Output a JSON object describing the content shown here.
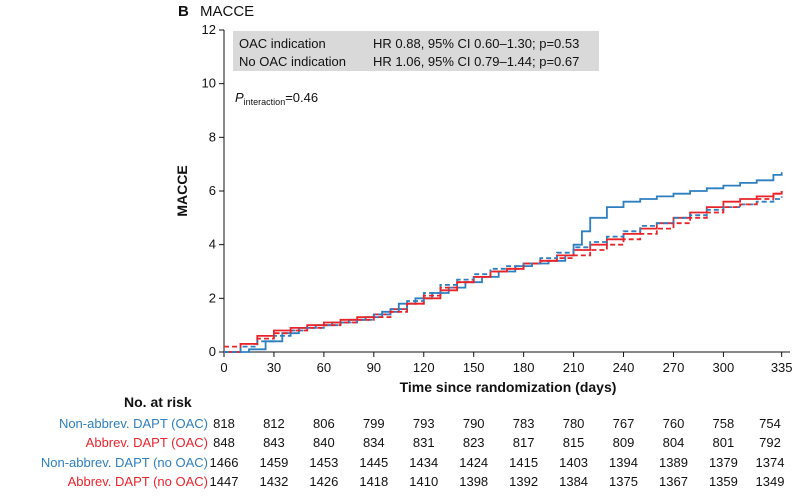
{
  "chart_data": {
    "type": "line",
    "step": true,
    "panel_letter": "B",
    "title": "MACCE",
    "xlabel": "Time since randomization (days)",
    "ylabel": "MACCE",
    "xlim": [
      0,
      340
    ],
    "ylim": [
      0,
      12
    ],
    "xticks": [
      0,
      30,
      60,
      90,
      120,
      150,
      180,
      210,
      240,
      270,
      300,
      335
    ],
    "yticks": [
      0,
      2,
      4,
      6,
      8,
      10,
      12
    ],
    "grid": false,
    "hr_box": {
      "rows": [
        {
          "label": "OAC indication",
          "text": "HR 0.88, 95% CI 0.60–1.30; p=0.53"
        },
        {
          "label": "No OAC indication",
          "text": "HR 1.06, 95% CI 0.79–1.44; p=0.67"
        }
      ]
    },
    "interaction": {
      "symbol": "P",
      "subscript": "interaction",
      "value": "=0.46"
    },
    "colors": {
      "blue": "#2e7fc0",
      "red": "#e8242b"
    },
    "series": [
      {
        "name": "Non-abbrev. DAPT (OAC)",
        "color": "#2e7fc0",
        "dash": false,
        "x": [
          0,
          15,
          25,
          35,
          45,
          55,
          65,
          75,
          85,
          95,
          105,
          115,
          125,
          135,
          145,
          155,
          165,
          175,
          185,
          195,
          205,
          210,
          215,
          220,
          230,
          240,
          250,
          260,
          270,
          280,
          290,
          300,
          310,
          320,
          330,
          335
        ],
        "y": [
          0,
          0.1,
          0.4,
          0.7,
          0.9,
          1.0,
          1.1,
          1.2,
          1.3,
          1.5,
          1.8,
          2.0,
          2.2,
          2.4,
          2.6,
          2.8,
          3.0,
          3.2,
          3.3,
          3.4,
          3.6,
          4.0,
          4.5,
          5.0,
          5.4,
          5.6,
          5.7,
          5.8,
          5.9,
          6.0,
          6.1,
          6.2,
          6.3,
          6.4,
          6.6,
          6.7
        ]
      },
      {
        "name": "Abbrev. DAPT (OAC)",
        "color": "#e8242b",
        "dash": false,
        "x": [
          0,
          10,
          20,
          30,
          40,
          50,
          60,
          70,
          80,
          90,
          100,
          110,
          120,
          130,
          140,
          150,
          160,
          170,
          180,
          190,
          200,
          210,
          220,
          230,
          240,
          250,
          260,
          270,
          280,
          290,
          300,
          310,
          320,
          330,
          335
        ],
        "y": [
          0,
          0.3,
          0.6,
          0.8,
          0.9,
          1.0,
          1.1,
          1.2,
          1.3,
          1.4,
          1.6,
          1.8,
          2.0,
          2.3,
          2.6,
          2.8,
          3.0,
          3.1,
          3.3,
          3.4,
          3.6,
          3.8,
          4.0,
          4.2,
          4.4,
          4.6,
          4.8,
          5.0,
          5.2,
          5.4,
          5.6,
          5.7,
          5.8,
          5.9,
          6.0
        ]
      },
      {
        "name": "Non-abbrev. DAPT (no OAC)",
        "color": "#2e7fc0",
        "dash": true,
        "x": [
          0,
          10,
          20,
          30,
          40,
          50,
          60,
          70,
          80,
          90,
          100,
          110,
          120,
          130,
          140,
          150,
          160,
          170,
          180,
          190,
          200,
          210,
          220,
          230,
          240,
          250,
          260,
          270,
          280,
          290,
          300,
          310,
          320,
          330,
          335
        ],
        "y": [
          0,
          0.2,
          0.4,
          0.6,
          0.8,
          0.9,
          1.0,
          1.1,
          1.2,
          1.4,
          1.6,
          1.9,
          2.2,
          2.5,
          2.7,
          2.9,
          3.1,
          3.2,
          3.3,
          3.5,
          3.7,
          3.9,
          4.1,
          4.3,
          4.5,
          4.7,
          4.8,
          5.0,
          5.1,
          5.3,
          5.4,
          5.5,
          5.6,
          5.7,
          5.8
        ]
      },
      {
        "name": "Abbrev. DAPT (no OAC)",
        "color": "#e8242b",
        "dash": true,
        "x": [
          0,
          10,
          20,
          30,
          40,
          50,
          60,
          70,
          80,
          90,
          100,
          110,
          120,
          130,
          140,
          150,
          160,
          170,
          180,
          190,
          200,
          210,
          220,
          230,
          240,
          250,
          260,
          270,
          280,
          290,
          300,
          310,
          320,
          330,
          335
        ],
        "y": [
          0.2,
          0.3,
          0.5,
          0.7,
          0.8,
          0.9,
          1.0,
          1.1,
          1.2,
          1.3,
          1.5,
          1.8,
          2.1,
          2.4,
          2.6,
          2.8,
          3.0,
          3.1,
          3.3,
          3.4,
          3.5,
          3.6,
          3.8,
          4.0,
          4.2,
          4.4,
          4.6,
          4.8,
          5.0,
          5.2,
          5.4,
          5.5,
          5.7,
          5.9,
          6.0
        ]
      }
    ]
  },
  "risk_table": {
    "title": "No. at risk",
    "times": [
      0,
      30,
      60,
      90,
      120,
      150,
      180,
      210,
      240,
      270,
      300,
      335
    ],
    "rows": [
      {
        "label": "Non-abbrev. DAPT (OAC)",
        "color": "#2e7fc0",
        "values": [
          "818",
          "812",
          "806",
          "799",
          "793",
          "790",
          "783",
          "780",
          "767",
          "760",
          "758",
          "754"
        ]
      },
      {
        "label": "Abbrev. DAPT (OAC)",
        "color": "#e8242b",
        "values": [
          "848",
          "843",
          "840",
          "834",
          "831",
          "823",
          "817",
          "815",
          "809",
          "804",
          "801",
          "792"
        ]
      },
      {
        "label": "Non-abbrev. DAPT (no OAC)",
        "color": "#2e7fc0",
        "values": [
          "1466",
          "1459",
          "1453",
          "1445",
          "1434",
          "1424",
          "1415",
          "1403",
          "1394",
          "1389",
          "1379",
          "1374"
        ]
      },
      {
        "label": "Abbrev. DAPT (no OAC)",
        "color": "#e8242b",
        "values": [
          "1447",
          "1432",
          "1426",
          "1418",
          "1410",
          "1398",
          "1392",
          "1384",
          "1375",
          "1367",
          "1359",
          "1349"
        ]
      }
    ]
  }
}
